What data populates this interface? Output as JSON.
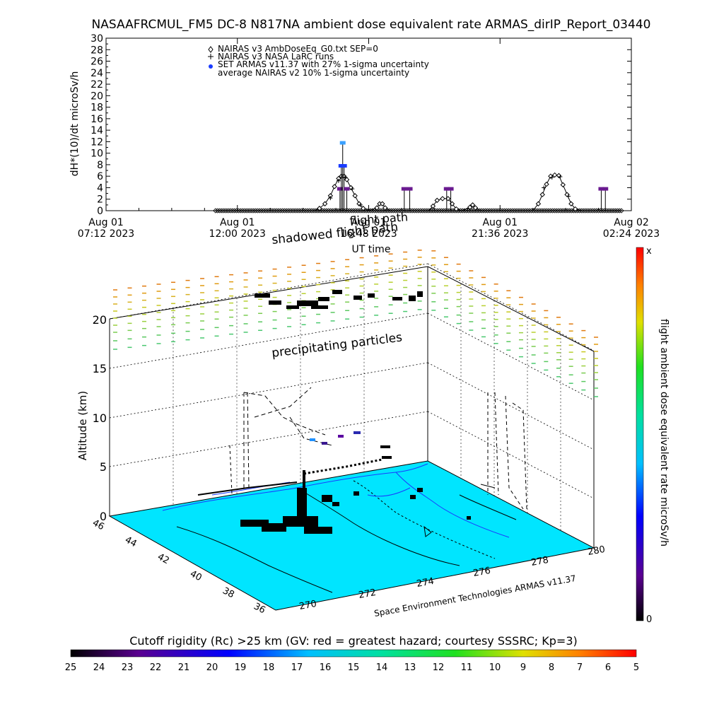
{
  "title": "NASAAFRCMUL_FM5 DC-8   N817NA ambient dose equivalent rate ARMAS_dirIP_Report_03440",
  "top_chart": {
    "ylabel": "dH*(10)/dt microSv/h",
    "xlabel": "UT time",
    "legend": [
      {
        "marker": "diamond",
        "text": "NAIRAS v3 AmbDoseEq_G0.txt SEP=0"
      },
      {
        "marker": "plus",
        "text": "NAIRAS v3 NASA LaRC runs"
      },
      {
        "marker": "dot",
        "text": "SET ARMAS v11.37 with 27% 1-sigma uncertainty"
      },
      {
        "marker": "none",
        "text": "average NAIRAS v2 10% 1-sigma uncertainty"
      }
    ],
    "x_ticks": [
      {
        "date": "Aug 01",
        "time": "07:12 2023"
      },
      {
        "date": "Aug 01",
        "time": "12:00 2023"
      },
      {
        "date": "Aug 01",
        "time": "16:48 2023"
      },
      {
        "date": "Aug 01",
        "time": "21:36 2023"
      },
      {
        "date": "Aug 02",
        "time": "02:24 2023"
      }
    ]
  },
  "overlay_labels": {
    "shadowed": "shadowed flight path",
    "flight_path": "flight path",
    "precipitating": "precipitating particles",
    "credit": "Space Environment Technologies ARMAS v11.37"
  },
  "map3d": {
    "zlabel": "Altitude (km)",
    "z_ticks": [
      "0",
      "5",
      "10",
      "15",
      "20"
    ],
    "lat_ticks": [
      "46",
      "44",
      "42",
      "40",
      "38",
      "36"
    ],
    "lon_ticks": [
      "270",
      "272",
      "274",
      "276",
      "278",
      "280"
    ],
    "map_color": "#00e5ff"
  },
  "right_colorbar": {
    "label": "flight ambient dose equivalent rate microSv/h",
    "top_label": "x",
    "bottom_label": "0"
  },
  "bottom_colorbar": {
    "title": "Cutoff rigidity (Rc) >25 km (GV: red = greatest hazard; courtesy SSSRC; Kp=3)",
    "ticks": [
      "25",
      "24",
      "23",
      "22",
      "21",
      "20",
      "19",
      "18",
      "17",
      "16",
      "15",
      "14",
      "13",
      "12",
      "11",
      "10",
      "9",
      "8",
      "7",
      "6",
      "5"
    ]
  },
  "chart_data": {
    "type": "line",
    "title": "NASAAFRCMUL_FM5 DC-8   N817NA ambient dose equivalent rate ARMAS_dirIP_Report_03440",
    "xlabel": "UT time",
    "ylabel": "dH*(10)/dt microSv/h",
    "x_unit": "hours since Aug 01 07:12 UT",
    "xlim": [
      0,
      19.2
    ],
    "ylim": [
      0,
      30
    ],
    "y_ticks": [
      0,
      2,
      4,
      6,
      8,
      10,
      12,
      14,
      16,
      18,
      20,
      22,
      24,
      26,
      28,
      30
    ],
    "series": [
      {
        "name": "NAIRAS v3 AmbDoseEq_G0.txt SEP=0",
        "marker": "diamond",
        "points": [
          [
            4.0,
            0
          ],
          [
            7.6,
            0
          ],
          [
            7.8,
            0.4
          ],
          [
            8.0,
            1.2
          ],
          [
            8.2,
            2.6
          ],
          [
            8.35,
            4.2
          ],
          [
            8.5,
            5.6
          ],
          [
            8.6,
            6.0
          ],
          [
            8.7,
            6.0
          ],
          [
            8.8,
            5.4
          ],
          [
            8.95,
            4.0
          ],
          [
            9.1,
            2.6
          ],
          [
            9.25,
            1.2
          ],
          [
            9.4,
            0.4
          ],
          [
            9.6,
            0
          ],
          [
            9.9,
            0.5
          ],
          [
            10.0,
            1.2
          ],
          [
            10.1,
            1.2
          ],
          [
            10.2,
            0.5
          ],
          [
            10.4,
            0
          ],
          [
            11.8,
            0
          ],
          [
            11.95,
            0.8
          ],
          [
            12.1,
            1.8
          ],
          [
            12.3,
            2.1
          ],
          [
            12.5,
            2.1
          ],
          [
            12.65,
            1.2
          ],
          [
            12.8,
            0.3
          ],
          [
            13.0,
            0
          ],
          [
            13.3,
            0.6
          ],
          [
            13.4,
            1.0
          ],
          [
            13.5,
            0.5
          ],
          [
            13.7,
            0
          ],
          [
            15.6,
            0
          ],
          [
            15.8,
            1.2
          ],
          [
            15.95,
            2.8
          ],
          [
            16.1,
            4.6
          ],
          [
            16.25,
            6.0
          ],
          [
            16.4,
            6.2
          ],
          [
            16.55,
            6.1
          ],
          [
            16.7,
            4.5
          ],
          [
            16.85,
            2.8
          ],
          [
            17.0,
            1.2
          ],
          [
            17.15,
            0.3
          ],
          [
            17.4,
            0
          ],
          [
            18.6,
            0
          ],
          [
            18.9,
            0
          ]
        ]
      },
      {
        "name": "NAIRAS v3 NASA LaRC runs",
        "marker": "plus",
        "points": [
          [
            8.2,
            2.2
          ],
          [
            8.5,
            5.2
          ],
          [
            8.75,
            5.8
          ],
          [
            9.0,
            3.8
          ],
          [
            9.3,
            1.0
          ],
          [
            16.0,
            4.0
          ],
          [
            16.3,
            5.8
          ],
          [
            16.6,
            5.9
          ],
          [
            16.9,
            2.5
          ]
        ]
      },
      {
        "name": "SET ARMAS v11.37 with 27% 1-sigma uncertainty",
        "marker": "dot",
        "points": [
          {
            "x": 8.55,
            "y": 3.8,
            "dose": "purple"
          },
          {
            "x": 8.6,
            "y": 7.8,
            "dose": "blue"
          },
          {
            "x": 8.65,
            "y": 11.8,
            "dose": "lightblue"
          },
          {
            "x": 8.7,
            "y": 7.8,
            "dose": "blue"
          },
          {
            "x": 8.8,
            "y": 3.8,
            "dose": "purple"
          },
          {
            "x": 10.9,
            "y": 3.8,
            "dose": "purple"
          },
          {
            "x": 11.1,
            "y": 3.8,
            "dose": "purple"
          },
          {
            "x": 12.45,
            "y": 3.8,
            "dose": "purple"
          },
          {
            "x": 12.6,
            "y": 3.8,
            "dose": "purple"
          },
          {
            "x": 18.1,
            "y": 3.8,
            "dose": "purple"
          },
          {
            "x": 18.25,
            "y": 3.8,
            "dose": "purple"
          }
        ]
      }
    ],
    "colorbar_bottom": {
      "label": "Cutoff rigidity (Rc) >25 km (GV)",
      "range": [
        25,
        5
      ],
      "colors": "black to red (rainbow)"
    },
    "colorbar_right": {
      "label": "flight ambient dose equivalent rate microSv/h",
      "range": [
        "0",
        "x"
      ]
    }
  }
}
